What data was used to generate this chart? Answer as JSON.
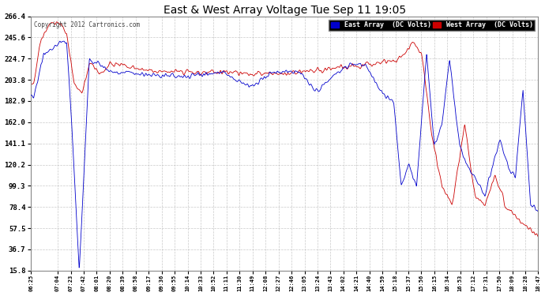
{
  "title": "East & West Array Voltage Tue Sep 11 19:05",
  "copyright": "Copyright 2012 Cartronics.com",
  "legend_east": "East Array  (DC Volts)",
  "legend_west": "West Array  (DC Volts)",
  "east_color": "#0000cc",
  "west_color": "#cc0000",
  "background_color": "#ffffff",
  "plot_bg_color": "#ffffff",
  "grid_color": "#bbbbbb",
  "ylim": [
    15.8,
    266.4
  ],
  "yticks": [
    15.8,
    36.7,
    57.5,
    78.4,
    99.3,
    120.2,
    141.1,
    162.0,
    182.9,
    203.8,
    224.7,
    245.6,
    266.4
  ],
  "xtick_labels": [
    "06:25",
    "07:04",
    "07:23",
    "07:42",
    "08:01",
    "08:20",
    "08:39",
    "08:58",
    "09:17",
    "09:36",
    "09:55",
    "10:14",
    "10:33",
    "10:52",
    "11:11",
    "11:30",
    "11:49",
    "12:08",
    "12:27",
    "12:46",
    "13:05",
    "13:24",
    "13:43",
    "14:02",
    "14:21",
    "14:40",
    "14:59",
    "15:18",
    "15:37",
    "15:56",
    "16:15",
    "16:34",
    "16:53",
    "17:12",
    "17:31",
    "17:50",
    "18:09",
    "18:28",
    "18:47"
  ]
}
